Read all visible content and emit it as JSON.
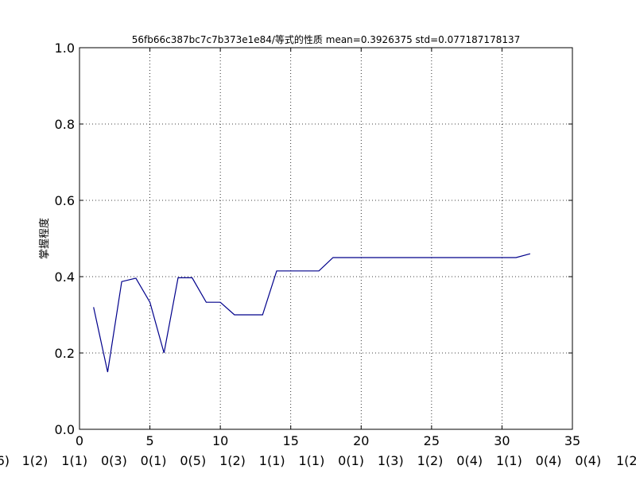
{
  "chart_data": {
    "type": "line",
    "title": "56fb66c387bc7c7b373e1e84/等式的性质 mean=0.3926375 std=0.077187178137",
    "xlabel": "",
    "ylabel": "掌握程度",
    "xlim": [
      0,
      35
    ],
    "ylim": [
      0.0,
      1.0
    ],
    "x_ticks": [
      0,
      5,
      10,
      15,
      20,
      25,
      30,
      35
    ],
    "y_ticks": [
      0.0,
      0.2,
      0.4,
      0.6,
      0.8,
      1.0
    ],
    "grid": true,
    "line_color": "#00008b",
    "series": [
      {
        "x": [
          1,
          2,
          3,
          4,
          5,
          6,
          7,
          8,
          9,
          10,
          11,
          12,
          13,
          14,
          15,
          16,
          17,
          18,
          19,
          20,
          21,
          22,
          23,
          24,
          25,
          26,
          27,
          28,
          29,
          30,
          31,
          32
        ],
        "values": [
          0.32,
          0.15,
          0.387,
          0.396,
          0.333,
          0.2,
          0.397,
          0.397,
          0.333,
          0.333,
          0.3,
          0.3,
          0.3,
          0.415,
          0.415,
          0.415,
          0.415,
          0.45,
          0.45,
          0.45,
          0.45,
          0.45,
          0.45,
          0.45,
          0.45,
          0.45,
          0.45,
          0.45,
          0.45,
          0.45,
          0.45,
          0.46
        ]
      }
    ],
    "bottom_labels": [
      "6)",
      "1(2)",
      "1(1)",
      "0(3)",
      "0(1)",
      "0(5)",
      "1(2)",
      "1(1)",
      "1(1)",
      "0(1)",
      "1(3)",
      "1(2)",
      "0(4)",
      "1(1)",
      "0(4)",
      "0(4)",
      "1(2"
    ]
  }
}
